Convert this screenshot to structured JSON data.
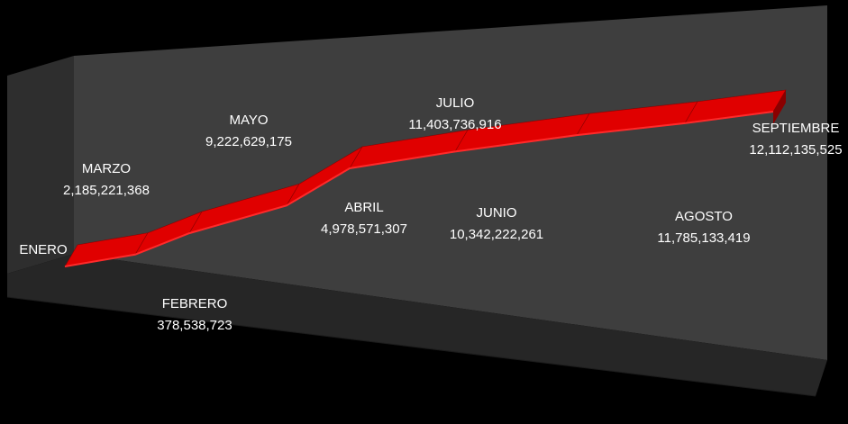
{
  "chart_data": {
    "type": "area",
    "style": "3d-ribbon",
    "title": "",
    "xlabel": "",
    "ylabel": "",
    "grid": false,
    "legend": "none",
    "categories": [
      "ENERO",
      "FEBRERO",
      "MARZO",
      "ABRIL",
      "MAYO",
      "JUNIO",
      "JULIO",
      "AGOSTO",
      "SEPTIEMBRE"
    ],
    "values": [
      null,
      378538723,
      2185221368,
      4978571307,
      9222629175,
      10342222261,
      11403736916,
      11785133419,
      12112135525
    ],
    "value_labels": [
      "",
      "378,538,723",
      "2,185,221,368",
      "4,978,571,307",
      "9,222,629,175",
      "10,342,222,261",
      "11,403,736,916",
      "11,785,133,419",
      "12,112,135,525"
    ],
    "ylim": [
      0,
      12112135525
    ],
    "colors": {
      "series": "#e00000",
      "series_top": "#ff2a2a",
      "series_dark": "#8a0000",
      "wall_back": "#3e3e3e",
      "wall_side": "#2e2e2e",
      "floor": "#262626",
      "background": "#000000",
      "label": "#ffffff"
    }
  }
}
